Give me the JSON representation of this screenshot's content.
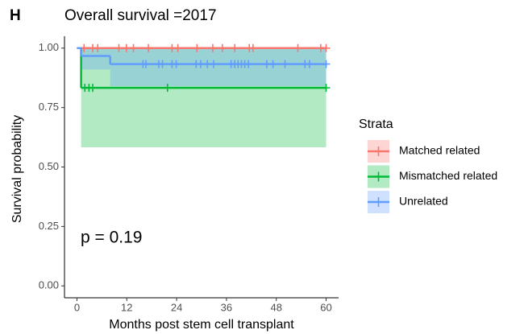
{
  "panel_label": "H",
  "chart_data": {
    "type": "survival",
    "title": "Overall survival =2017",
    "x_label": "Months post stem cell transplant",
    "y_label": "Survival probability",
    "annotation": "p = 0.19",
    "legend_title": "Strata",
    "legend_position": "right",
    "xlim": [
      -3,
      63
    ],
    "ylim": [
      -0.05,
      1.05
    ],
    "xticks": [
      0,
      12,
      24,
      36,
      48,
      60
    ],
    "yticks": [
      {
        "value": 0,
        "label": "0.00"
      },
      0.25,
      {
        "value": 0.5,
        "label": "0.50"
      },
      0.75,
      {
        "value": 1,
        "label": "1.00"
      }
    ],
    "series": [
      {
        "name": "Matched related",
        "color": "#F8766D",
        "x": [
          0
        ],
        "values": [
          1
        ],
        "lower": [
          1
        ],
        "upper": [
          1
        ],
        "censor": [
          1.7,
          3.8,
          5.0,
          10.1,
          11.9,
          13.6,
          17.2,
          22.9,
          24.3,
          28.9,
          32.7,
          35.0,
          38.0,
          41.5,
          42.4,
          53.2,
          58.7,
          60
        ]
      },
      {
        "name": "Mismatched related",
        "color": "#00BA38",
        "x": [
          0,
          1
        ],
        "values": [
          1,
          0.833
        ],
        "lower": [
          1,
          0.583
        ],
        "upper": [
          1,
          1
        ],
        "censor": [
          1.9,
          2.9,
          3.8,
          21.8,
          60
        ]
      },
      {
        "name": "Unrelated",
        "color": "#619CFF",
        "x": [
          0,
          1,
          8
        ],
        "values": [
          1,
          0.967,
          0.933
        ],
        "lower": [
          1,
          0.91,
          0.84
        ],
        "upper": [
          1,
          1,
          1
        ],
        "censor": [
          15.9,
          16.6,
          19.7,
          20.6,
          22.9,
          23.9,
          28.7,
          29.8,
          31.4,
          32.9,
          37.1,
          38.0,
          38.8,
          39.6,
          40.4,
          41.3,
          45.7,
          47.2,
          50.1,
          54.9,
          56.0,
          60
        ]
      }
    ]
  }
}
